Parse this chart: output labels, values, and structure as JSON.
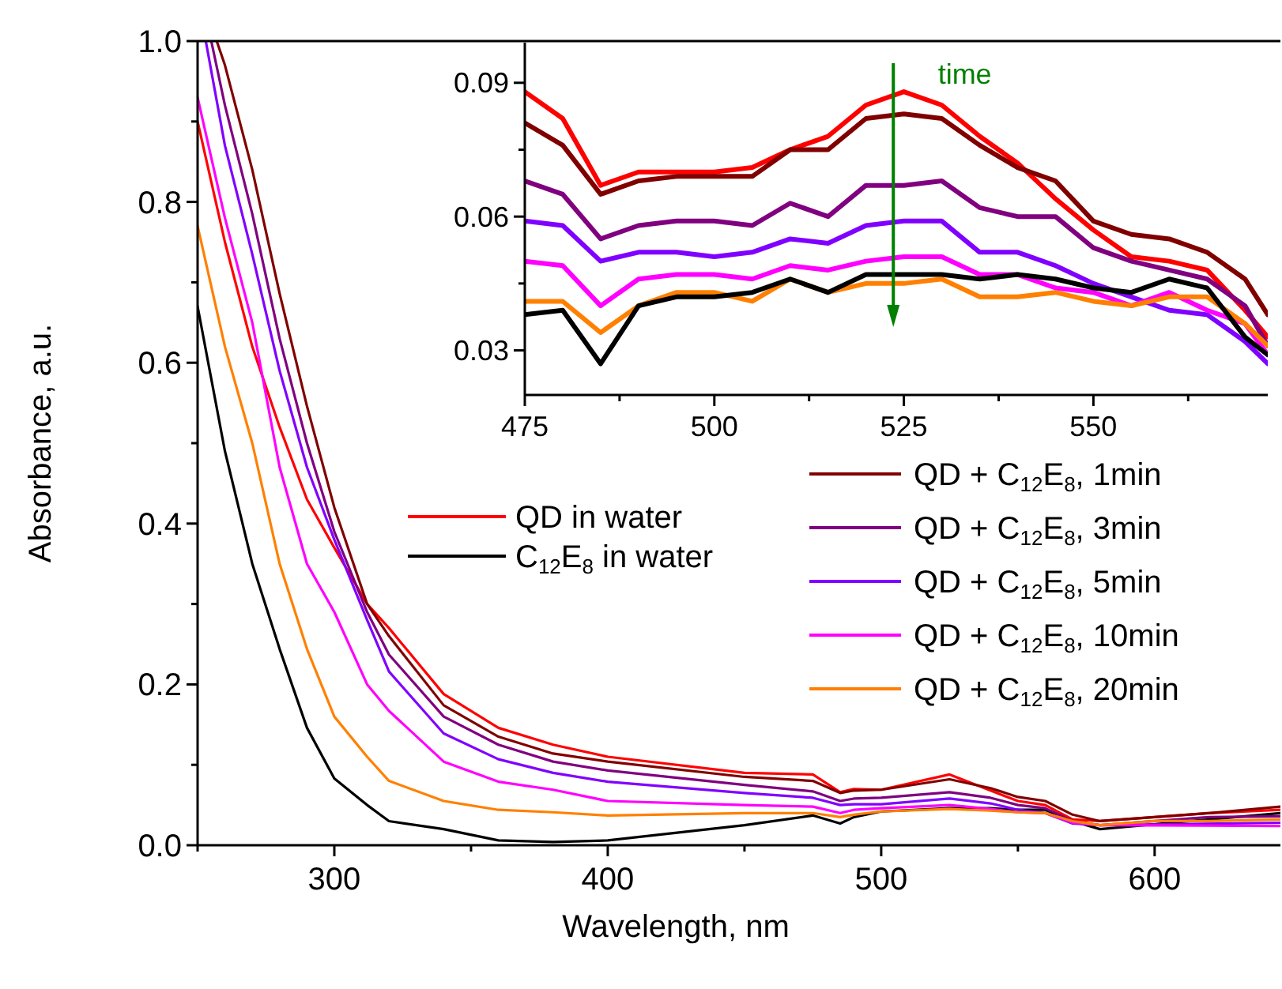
{
  "chart_data": [
    {
      "type": "line",
      "xlabel": "Wavelength, nm",
      "ylabel": "Absorbance, a.u.",
      "xlim": [
        250,
        646
      ],
      "ylim": [
        0,
        1
      ],
      "xticks": [
        {
          "value": 250,
          "label": null
        },
        300,
        {
          "value": 350,
          "label": null
        },
        400,
        {
          "value": 450,
          "label": null
        },
        500,
        {
          "value": 550,
          "label": null
        },
        600
      ],
      "yticks": [
        {
          "value": 0,
          "label": "0.0"
        },
        {
          "value": 0.1,
          "label": null
        },
        {
          "value": 0.2,
          "label": "0.2"
        },
        {
          "value": 0.3,
          "label": null
        },
        {
          "value": 0.4,
          "label": "0.4"
        },
        {
          "value": 0.5,
          "label": null
        },
        {
          "value": 0.6,
          "label": "0.6"
        },
        {
          "value": 0.7,
          "label": null
        },
        {
          "value": 0.8,
          "label": "0.8"
        },
        {
          "value": 0.9,
          "label": null
        },
        {
          "value": 1,
          "label": "1.0"
        }
      ],
      "legend": "right",
      "grid": false,
      "line_style": "solid",
      "marker": "none",
      "series": [
        {
          "name": "QD in water",
          "color": "#ff0000",
          "x": [
            250,
            260,
            270,
            280,
            290,
            300,
            312,
            320,
            340,
            360,
            380,
            400,
            450,
            475,
            485,
            490,
            500,
            525,
            540,
            550,
            560,
            570,
            580,
            600,
            620,
            646
          ],
          "values": [
            0.9,
            0.75,
            0.62,
            0.52,
            0.43,
            0.37,
            0.3,
            0.27,
            0.188,
            0.146,
            0.125,
            0.11,
            0.09,
            0.088,
            0.066,
            0.07,
            0.069,
            0.088,
            0.068,
            0.055,
            0.05,
            0.032,
            0.03,
            0.035,
            0.04,
            0.044
          ]
        },
        {
          "name": "C$_{12}$E$_{8}$ in water",
          "color": "#000000",
          "x": [
            250,
            260,
            270,
            280,
            290,
            300,
            312,
            320,
            340,
            360,
            380,
            400,
            450,
            475,
            485,
            490,
            500,
            525,
            540,
            550,
            560,
            570,
            580,
            646
          ],
          "values": [
            0.67,
            0.49,
            0.35,
            0.244,
            0.146,
            0.083,
            0.05,
            0.03,
            0.02,
            0.006,
            0.004,
            0.006,
            0.025,
            0.037,
            0.027,
            0.035,
            0.042,
            0.046,
            0.046,
            0.044,
            0.044,
            0.03,
            0.02,
            0.04
          ]
        },
        {
          "name": "QD + C$_{12}$E$_{8}$, 1min",
          "color": "#800000",
          "x": [
            257,
            260,
            270,
            280,
            290,
            300,
            312,
            320,
            340,
            360,
            380,
            400,
            450,
            475,
            485,
            490,
            500,
            525,
            540,
            550,
            560,
            570,
            580,
            600,
            620,
            646
          ],
          "values": [
            1,
            0.97,
            0.84,
            0.686,
            0.546,
            0.42,
            0.3,
            0.26,
            0.174,
            0.135,
            0.114,
            0.104,
            0.085,
            0.08,
            0.065,
            0.068,
            0.069,
            0.082,
            0.071,
            0.06,
            0.055,
            0.038,
            0.03,
            0.035,
            0.04,
            0.048
          ]
        },
        {
          "name": "QD + C$_{12}$E$_{8}$, 3min",
          "color": "#800080",
          "x": [
            255,
            260,
            270,
            280,
            290,
            300,
            312,
            320,
            340,
            360,
            380,
            400,
            450,
            475,
            485,
            490,
            500,
            525,
            540,
            550,
            560,
            570,
            580,
            600,
            620,
            646
          ],
          "values": [
            1,
            0.92,
            0.785,
            0.63,
            0.5,
            0.39,
            0.29,
            0.237,
            0.16,
            0.125,
            0.104,
            0.093,
            0.075,
            0.067,
            0.055,
            0.058,
            0.059,
            0.066,
            0.059,
            0.05,
            0.046,
            0.03,
            0.025,
            0.03,
            0.035,
            0.036
          ]
        },
        {
          "name": "QD + C$_{12}$E$_{8}$, 5min",
          "color": "#8000ff",
          "x": [
            253,
            260,
            270,
            280,
            290,
            300,
            312,
            320,
            340,
            360,
            380,
            400,
            450,
            475,
            485,
            490,
            500,
            525,
            540,
            550,
            560,
            570,
            580,
            646
          ],
          "values": [
            1,
            0.87,
            0.735,
            0.59,
            0.47,
            0.38,
            0.28,
            0.216,
            0.139,
            0.107,
            0.09,
            0.079,
            0.065,
            0.059,
            0.05,
            0.051,
            0.051,
            0.058,
            0.052,
            0.044,
            0.04,
            0.027,
            0.025,
            0.028
          ]
        },
        {
          "name": "QD + C$_{12}$E$_{8}$, 10min",
          "color": "#ff00ff",
          "x": [
            250,
            260,
            270,
            280,
            290,
            300,
            312,
            320,
            340,
            360,
            380,
            400,
            450,
            475,
            485,
            490,
            500,
            525,
            540,
            550,
            560,
            570,
            580,
            646
          ],
          "values": [
            0.93,
            0.78,
            0.65,
            0.47,
            0.35,
            0.29,
            0.2,
            0.167,
            0.104,
            0.079,
            0.069,
            0.055,
            0.05,
            0.048,
            0.04,
            0.044,
            0.046,
            0.05,
            0.045,
            0.041,
            0.04,
            0.028,
            0.025,
            0.024
          ]
        },
        {
          "name": "QD + C$_{12}$E$_{8}$, 20min",
          "color": "#ff8000",
          "x": [
            250,
            260,
            270,
            280,
            290,
            300,
            312,
            320,
            340,
            360,
            380,
            400,
            450,
            475,
            485,
            490,
            500,
            525,
            540,
            550,
            560,
            570,
            580,
            600,
            620,
            646
          ],
          "values": [
            0.77,
            0.62,
            0.5,
            0.35,
            0.244,
            0.16,
            0.11,
            0.08,
            0.055,
            0.044,
            0.041,
            0.037,
            0.04,
            0.04,
            0.035,
            0.038,
            0.042,
            0.045,
            0.043,
            0.041,
            0.04,
            0.03,
            0.025,
            0.03,
            0.03,
            0.032
          ]
        }
      ]
    },
    {
      "type": "line",
      "xlim": [
        475,
        573
      ],
      "ylim": [
        0.02,
        0.099
      ],
      "xticks": [
        475,
        {
          "value": 487.5,
          "label": null
        },
        500,
        {
          "value": 512.5,
          "label": null
        },
        525,
        {
          "value": 537.5,
          "label": null
        },
        550,
        {
          "value": 562.5,
          "label": null
        }
      ],
      "yticks": [
        {
          "value": 0.03,
          "label": "0.03"
        },
        {
          "value": 0.045,
          "label": null
        },
        {
          "value": 0.06,
          "label": "0.06"
        },
        {
          "value": 0.075,
          "label": null
        },
        {
          "value": 0.09,
          "label": "0.09"
        }
      ],
      "grid": false,
      "line_style": "solid",
      "marker": "none",
      "annotations": [
        "time"
      ],
      "x": [
        475,
        480,
        485,
        490,
        495,
        500,
        505,
        510,
        515,
        520,
        525,
        530,
        535,
        540,
        545,
        550,
        555,
        560,
        565,
        570,
        573
      ],
      "series": [
        {
          "color": "#ff0000",
          "values": [
            0.088,
            0.082,
            0.067,
            0.07,
            0.07,
            0.07,
            0.071,
            0.075,
            0.078,
            0.085,
            0.088,
            0.085,
            0.078,
            0.072,
            0.064,
            0.057,
            0.051,
            0.05,
            0.048,
            0.039,
            0.033
          ]
        },
        {
          "color": "#800000",
          "values": [
            0.081,
            0.076,
            0.065,
            0.068,
            0.069,
            0.069,
            0.069,
            0.075,
            0.075,
            0.082,
            0.083,
            0.082,
            0.076,
            0.071,
            0.068,
            0.059,
            0.056,
            0.055,
            0.052,
            0.046,
            0.038
          ]
        },
        {
          "color": "#800080",
          "values": [
            0.068,
            0.065,
            0.055,
            0.058,
            0.059,
            0.059,
            0.058,
            0.063,
            0.06,
            0.067,
            0.067,
            0.068,
            0.062,
            0.06,
            0.06,
            0.053,
            0.05,
            0.048,
            0.046,
            0.04,
            0.031
          ]
        },
        {
          "color": "#8000ff",
          "values": [
            0.059,
            0.058,
            0.05,
            0.052,
            0.052,
            0.051,
            0.052,
            0.055,
            0.054,
            0.058,
            0.059,
            0.059,
            0.052,
            0.052,
            0.049,
            0.045,
            0.042,
            0.039,
            0.038,
            0.032,
            0.027
          ]
        },
        {
          "color": "#ff00ff",
          "values": [
            0.05,
            0.049,
            0.04,
            0.046,
            0.047,
            0.047,
            0.046,
            0.049,
            0.048,
            0.05,
            0.051,
            0.051,
            0.047,
            0.047,
            0.044,
            0.043,
            0.04,
            0.043,
            0.039,
            0.036,
            0.029
          ]
        },
        {
          "color": "#ff8000",
          "values": [
            0.041,
            0.041,
            0.034,
            0.04,
            0.043,
            0.043,
            0.041,
            0.046,
            0.043,
            0.045,
            0.045,
            0.046,
            0.042,
            0.042,
            0.043,
            0.041,
            0.04,
            0.042,
            0.042,
            0.036,
            0.031
          ]
        },
        {
          "color": "#000000",
          "values": [
            0.038,
            0.039,
            0.027,
            0.04,
            0.042,
            0.042,
            0.043,
            0.046,
            0.043,
            0.047,
            0.047,
            0.047,
            0.046,
            0.047,
            0.046,
            0.044,
            0.043,
            0.046,
            0.044,
            0.033,
            0.029
          ]
        }
      ]
    }
  ]
}
